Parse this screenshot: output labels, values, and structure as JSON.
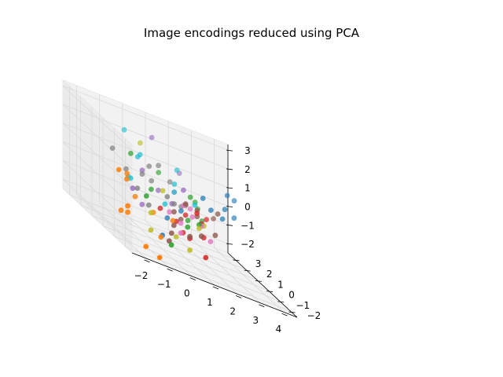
{
  "chart_data": {
    "type": "scatter",
    "projection": "3d",
    "title": "Image encodings reduced using PCA",
    "xlabel": "",
    "ylabel": "",
    "zlabel": "",
    "grid": true,
    "xlim": [
      -2.6,
      4.6
    ],
    "ylim": [
      -2.6,
      3.6
    ],
    "zlim": [
      -2.5,
      3.3
    ],
    "x_ticks": [
      -2,
      -1,
      0,
      1,
      2,
      3,
      4
    ],
    "y_ticks": [
      -2,
      -1,
      0,
      1,
      2,
      3
    ],
    "z_ticks": [
      -2,
      -1,
      0,
      1,
      2,
      3
    ],
    "colors": [
      "#1f77b4",
      "#ff7f0e",
      "#2ca02c",
      "#d62728",
      "#9467bd",
      "#8c564b",
      "#e377c2",
      "#7f7f7f",
      "#bcbd22",
      "#17becf"
    ],
    "series": [
      {
        "values": [
          [
            3.2,
            1.0,
            0.6
          ],
          [
            3.6,
            1.6,
            1.2
          ],
          [
            3.8,
            1.4,
            0.2
          ],
          [
            4.0,
            1.8,
            1.0
          ],
          [
            2.4,
            0.6,
            0.4
          ],
          [
            3.0,
            0.8,
            0.1
          ],
          [
            1.0,
            0.4,
            -0.2
          ],
          [
            0.3,
            0.2,
            -0.8
          ],
          [
            2.0,
            0.5,
            0.9
          ],
          [
            -0.4,
            -0.8,
            -1.5
          ]
        ]
      },
      {
        "values": [
          [
            -2.3,
            -1.6,
            -0.4
          ],
          [
            -2.2,
            -1.4,
            -0.8
          ],
          [
            -1.8,
            -2.2,
            -2.0
          ],
          [
            -1.2,
            -2.2,
            -2.3
          ],
          [
            -2.3,
            -0.8,
            1.1
          ],
          [
            -2.0,
            -0.9,
            0.8
          ],
          [
            -1.7,
            -0.3,
            0.9
          ],
          [
            -2.4,
            -1.2,
            -0.9
          ],
          [
            -1.3,
            -0.2,
            -0.2
          ],
          [
            -0.6,
            -0.4,
            -0.6
          ],
          [
            -0.8,
            -1.5,
            -1.4
          ],
          [
            0.2,
            -0.5,
            -0.6
          ]
        ]
      },
      {
        "values": [
          [
            0.6,
            1.6,
            1.0
          ],
          [
            -1.0,
            0.8,
            1.7
          ],
          [
            2.0,
            1.2,
            0.3
          ],
          [
            1.2,
            0.2,
            -0.5
          ],
          [
            -0.2,
            -1.2,
            -1.7
          ],
          [
            2.4,
            1.8,
            -0.2
          ],
          [
            0.8,
            -0.6,
            -0.6
          ],
          [
            1.6,
            0.8,
            0.6
          ],
          [
            -0.4,
            0.2,
            0.4
          ],
          [
            -1.0,
            -0.6,
            0.2
          ],
          [
            1.4,
            -0.4,
            -0.3
          ],
          [
            2.2,
            1.0,
            -0.5
          ]
        ]
      },
      {
        "values": [
          [
            0.6,
            -0.6,
            -1.0
          ],
          [
            1.4,
            -0.2,
            0.2
          ],
          [
            0.8,
            -0.8,
            -1.1
          ],
          [
            1.8,
            0.2,
            -0.4
          ],
          [
            1.2,
            -1.4,
            -1.6
          ],
          [
            0.4,
            -0.4,
            -0.6
          ],
          [
            1.0,
            0.0,
            -0.2
          ],
          [
            1.6,
            -0.4,
            -0.9
          ],
          [
            -0.2,
            -0.2,
            -0.3
          ],
          [
            2.2,
            0.6,
            -0.2
          ]
        ]
      },
      {
        "values": [
          [
            0.5,
            2.0,
            2.6
          ],
          [
            -0.6,
            0.6,
            1.1
          ],
          [
            -1.4,
            -0.2,
            0.2
          ],
          [
            1.8,
            2.2,
            1.2
          ],
          [
            0.2,
            0.8,
            0.3
          ],
          [
            -0.8,
            0.2,
            -0.6
          ],
          [
            1.2,
            0.6,
            0.9
          ],
          [
            0.6,
            0.4,
            0.0
          ]
        ]
      },
      {
        "values": [
          [
            0.4,
            -0.2,
            -0.2
          ],
          [
            1.0,
            0.0,
            0.4
          ],
          [
            1.6,
            0.2,
            -0.1
          ],
          [
            0.8,
            -0.8,
            -1.0
          ],
          [
            1.4,
            -0.6,
            -0.8
          ],
          [
            2.6,
            0.4,
            0.4
          ],
          [
            0.2,
            -0.6,
            -0.8
          ],
          [
            1.8,
            0.6,
            0.1
          ],
          [
            0.0,
            -0.8,
            -1.2
          ],
          [
            2.2,
            -0.2,
            -0.6
          ],
          [
            -0.2,
            -1.0,
            -1.6
          ],
          [
            1.2,
            0.4,
            0.2
          ],
          [
            2.8,
            1.2,
            -0.2
          ],
          [
            0.6,
            -0.4,
            -0.4
          ]
        ]
      },
      {
        "values": [
          [
            1.0,
            0.2,
            0.2
          ],
          [
            0.6,
            -0.4,
            -0.6
          ],
          [
            1.6,
            -0.2,
            -0.4
          ],
          [
            0.8,
            0.6,
            0.6
          ],
          [
            1.4,
            0.4,
            0.1
          ],
          [
            0.2,
            -0.2,
            -0.3
          ],
          [
            1.8,
            -0.6,
            -0.9
          ],
          [
            0.4,
            -0.8,
            -1.0
          ],
          [
            1.2,
            -0.2,
            -0.1
          ]
        ]
      },
      {
        "values": [
          [
            -1.8,
            0.8,
            1.6
          ],
          [
            -1.4,
            0.4,
            0.9
          ],
          [
            0.4,
            1.2,
            1.5
          ],
          [
            -0.6,
            0.6,
            0.9
          ],
          [
            0.2,
            0.0,
            0.4
          ],
          [
            1.0,
            1.4,
            0.8
          ],
          [
            -1.2,
            -0.2,
            0.3
          ],
          [
            -0.2,
            0.8,
            1.4
          ],
          [
            0.6,
            0.2,
            0.1
          ],
          [
            1.2,
            0.8,
            -0.1
          ],
          [
            -0.8,
            -0.4,
            -0.3
          ],
          [
            0.0,
            1.0,
            0.6
          ]
        ]
      },
      {
        "values": [
          [
            -0.2,
            1.6,
            2.2
          ],
          [
            0.2,
            -0.8,
            -1.3
          ],
          [
            1.4,
            -0.4,
            -0.5
          ],
          [
            -0.8,
            -0.6,
            -0.6
          ],
          [
            -1.0,
            -1.0,
            -1.4
          ],
          [
            0.6,
            -1.2,
            -1.6
          ],
          [
            1.8,
            0.0,
            -0.4
          ],
          [
            0.2,
            0.4,
            0.5
          ]
        ]
      },
      {
        "values": [
          [
            -0.8,
            1.8,
            2.5
          ],
          [
            -0.4,
            1.2,
            1.7
          ],
          [
            1.4,
            1.6,
            1.5
          ],
          [
            0.8,
            0.6,
            0.6
          ],
          [
            -1.2,
            0.4,
            0.5
          ],
          [
            0.2,
            0.2,
            -0.1
          ],
          [
            1.6,
            0.4,
            0.4
          ],
          [
            -0.6,
            1.0,
            1.6
          ],
          [
            1.0,
            1.0,
            0.9
          ],
          [
            -1.4,
            0.2,
            0.6
          ]
        ]
      }
    ]
  }
}
